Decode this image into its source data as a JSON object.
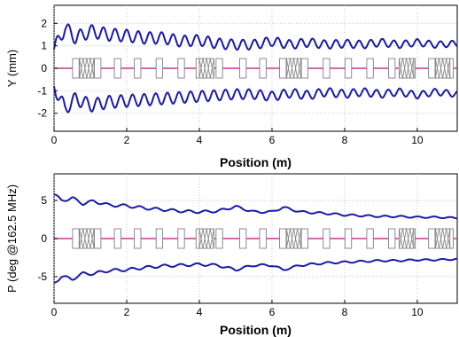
{
  "colors": {
    "envelope": "#1a1aaa",
    "axis_line": "#cc3399",
    "element": "#808080",
    "element_fill": "#ffffff",
    "grid": "#bbbbbb"
  },
  "chart_data": [
    {
      "type": "line",
      "xlabel": "Position (m)",
      "ylabel": "Y (mm)",
      "xlim": [
        0,
        11.1
      ],
      "ylim": [
        -2.8,
        2.8
      ],
      "xticks": [
        0,
        2,
        4,
        6,
        8,
        10
      ],
      "yticks": [
        -2,
        -1,
        0,
        1,
        2
      ],
      "grid": true,
      "series": [
        {
          "x": [
            0,
            0.3,
            0.6,
            1.0,
            1.5,
            2.0,
            2.5,
            3.0,
            3.5,
            4.0,
            4.5,
            5.0,
            5.5,
            6.0,
            6.5,
            7.0,
            7.5,
            8.0,
            8.5,
            9.0,
            9.5,
            10.0,
            10.5,
            11.1
          ],
          "y": [
            0.85,
            1.8,
            1.35,
            1.65,
            1.5,
            1.45,
            1.35,
            1.35,
            1.2,
            1.25,
            1.1,
            1.05,
            1.05,
            1.2,
            1.05,
            1.15,
            1.05,
            1.1,
            1.05,
            1.15,
            1.05,
            1.15,
            1.05,
            1.1
          ],
          "envelope_amplitude": 0.3,
          "oscillation_period": 0.32
        },
        {
          "x": [
            0,
            0.3,
            0.6,
            1.0,
            1.5,
            2.0,
            2.5,
            3.0,
            3.5,
            4.0,
            4.5,
            5.0,
            5.5,
            6.0,
            6.5,
            7.0,
            7.5,
            8.0,
            8.5,
            9.0,
            9.5,
            10.0,
            10.5,
            11.1
          ],
          "y": [
            -0.8,
            -1.8,
            -1.35,
            -1.65,
            -1.5,
            -1.45,
            -1.4,
            -1.35,
            -1.3,
            -1.25,
            -1.2,
            -1.15,
            -1.15,
            -1.25,
            -1.1,
            -1.2,
            -1.05,
            -1.15,
            -1.05,
            -1.15,
            -1.05,
            -1.2,
            -1.05,
            -1.15
          ],
          "envelope_amplitude": 0.3,
          "oscillation_period": 0.32
        }
      ]
    },
    {
      "type": "line",
      "xlabel": "Position (m)",
      "ylabel": "P (deg @162.5 MHz)",
      "xlim": [
        0,
        11.1
      ],
      "ylim": [
        -8.5,
        8.5
      ],
      "xticks": [
        0,
        2,
        4,
        6,
        8,
        10
      ],
      "yticks": [
        -5,
        0,
        5
      ],
      "grid": true,
      "series": [
        {
          "x": [
            0,
            0.2,
            0.5,
            0.8,
            1.1,
            1.5,
            2.0,
            2.5,
            3.0,
            3.5,
            4.0,
            4.5,
            5.0,
            5.5,
            6.0,
            6.3,
            6.8,
            7.5,
            8.0,
            8.5,
            9.0,
            9.5,
            10.0,
            10.5,
            11.1
          ],
          "y": [
            5.8,
            5.0,
            5.3,
            4.6,
            4.9,
            4.4,
            4.3,
            4.0,
            3.8,
            3.6,
            3.5,
            3.6,
            4.2,
            3.5,
            3.5,
            4.1,
            3.5,
            3.3,
            3.1,
            3.0,
            2.9,
            2.9,
            2.8,
            2.8,
            2.7
          ],
          "envelope_amplitude": 0.2,
          "oscillation_period": 0.45
        },
        {
          "x": [
            0,
            0.2,
            0.5,
            0.8,
            1.1,
            1.5,
            2.0,
            2.5,
            3.0,
            3.5,
            4.0,
            4.5,
            5.0,
            5.5,
            6.0,
            6.3,
            6.8,
            7.5,
            8.0,
            8.5,
            9.0,
            9.5,
            10.0,
            10.5,
            11.1
          ],
          "y": [
            -5.8,
            -5.0,
            -5.3,
            -4.6,
            -4.6,
            -4.2,
            -4.1,
            -3.8,
            -3.6,
            -3.5,
            -3.4,
            -3.5,
            -4.1,
            -3.5,
            -3.5,
            -4.1,
            -3.5,
            -3.2,
            -3.1,
            -3.0,
            -2.9,
            -2.9,
            -2.8,
            -2.8,
            -2.7
          ],
          "envelope_amplitude": 0.2,
          "oscillation_period": 0.45
        }
      ]
    }
  ],
  "lattice": {
    "solenoids": [
      0.6,
      1.2,
      1.75,
      2.3,
      2.9,
      3.5,
      4.0,
      4.55,
      5.2,
      5.75,
      6.3,
      6.9,
      7.5,
      8.1,
      8.7,
      9.3,
      9.85,
      10.4,
      10.9
    ],
    "cavities": [
      0.9,
      4.2,
      6.6,
      9.7,
      10.7
    ]
  }
}
